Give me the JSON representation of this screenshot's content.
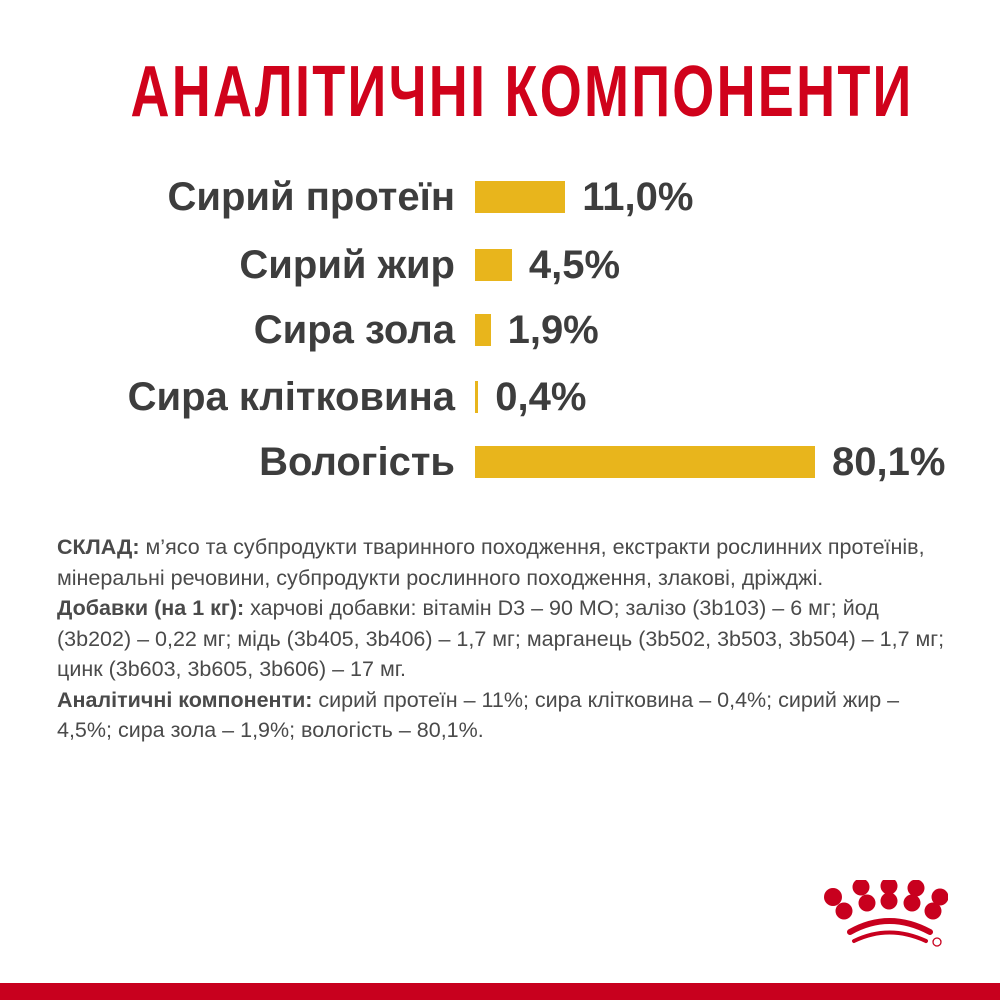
{
  "title": "АНАЛІТИЧНІ КОМПОНЕНТИ",
  "chart_data": {
    "type": "bar",
    "orientation": "horizontal",
    "categories": [
      "Сирий протеїн",
      "Сирий жир",
      "Сира зола",
      "Сира клітковина",
      "Вологість"
    ],
    "values": [
      11.0,
      4.5,
      1.9,
      0.4,
      80.1
    ],
    "data_labels": [
      "11,0%",
      "4,5%",
      "1,9%",
      "0,4%",
      "80,1%"
    ],
    "bar_color": "#e8b51c",
    "grid": false
  },
  "composition": {
    "label": "СКЛАД:",
    "text": " м’ясо та субпродукти тваринного походження, екстракти рослинних протеїнів, мінеральні речовини, субпродукти рослинного походження, злакові, дріжджі.",
    "additives_label": "Добавки (на 1 кг):",
    "additives_text": " харчові добавки: вітамін D3 – 90 МО; залізо (3b103) – 6 мг; йод (3b202) – 0,22 мг; мідь (3b405, 3b406) – 1,7 мг; марганець (3b502, 3b503, 3b504) – 1,7 мг; цинк (3b603, 3b605, 3b606) – 17 мг.",
    "analytic_label": "Аналітичні компоненти:",
    "analytic_text": " сирий протеїн – 11%; сира клітковина – 0,4%; сирий жир – 4,5%; сира зола – 1,9%;  вологість – 80,1%."
  },
  "brand_color": "#d0021b",
  "logo": "royal-canin-crown"
}
